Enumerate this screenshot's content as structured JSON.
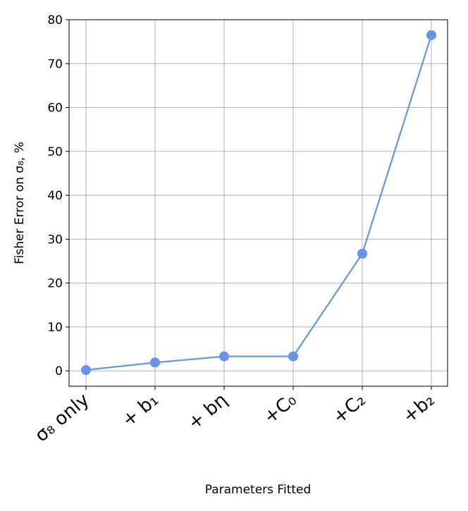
{
  "chart_data": {
    "type": "line",
    "xlabel": "Parameters Fitted",
    "ylabel": "Fisher Error on σ₈, %",
    "categories": [
      "σ₈ only",
      "+ b₁",
      "+ bη",
      "+C₀",
      "+C₂",
      "+b₂"
    ],
    "values": [
      0.2,
      1.9,
      3.3,
      3.3,
      26.7,
      76.5
    ],
    "color": "#6495ed",
    "ylim": [
      -3.5,
      80
    ],
    "yticks": [
      0,
      10,
      20,
      30,
      40,
      50,
      60,
      70,
      80
    ],
    "grid": true
  }
}
